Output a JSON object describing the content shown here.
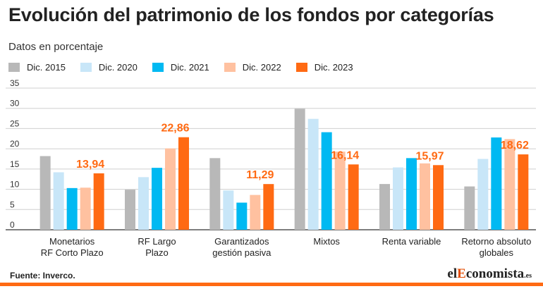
{
  "header": {
    "title": "Evolución del patrimonio de los fondos por categorías",
    "subtitle": "Datos en porcentaje"
  },
  "footer": {
    "source": "Fuente: Inverco.",
    "brand_prefix": "el",
    "brand_highlight": "E",
    "brand_rest": "conomista",
    "brand_suffix": ".es"
  },
  "chart_data": {
    "type": "bar",
    "title": "Evolución del patrimonio de los fondos por categorías",
    "ylabel": "Datos en porcentaje",
    "xlabel": "",
    "ylim": [
      0,
      35
    ],
    "yticks": [
      0,
      5,
      10,
      15,
      20,
      25,
      30,
      35
    ],
    "grid": true,
    "legend_position": "top-left",
    "categories": [
      [
        "Monetarios",
        "RF Corto Plazo"
      ],
      [
        "RF Largo",
        "Plazo"
      ],
      [
        "Garantizados",
        "gestión pasiva"
      ],
      [
        "Mixtos"
      ],
      [
        "Renta variable"
      ],
      [
        "Retorno absoluto",
        "globales"
      ]
    ],
    "series": [
      {
        "name": "Dic. 2015",
        "color": "#b8b8b8",
        "values": [
          18.2,
          9.9,
          17.7,
          29.9,
          11.3,
          10.7
        ]
      },
      {
        "name": "Dic. 2020",
        "color": "#c8e6f8",
        "values": [
          14.2,
          13.0,
          9.7,
          27.4,
          15.4,
          17.5
        ]
      },
      {
        "name": "Dic. 2021",
        "color": "#00b9f2",
        "values": [
          10.3,
          15.3,
          6.7,
          24.1,
          17.7,
          22.8
        ]
      },
      {
        "name": "Dic. 2022",
        "color": "#ffc1a0",
        "values": [
          10.4,
          20.1,
          8.6,
          19.3,
          16.4,
          22.4
        ]
      },
      {
        "name": "Dic. 2023",
        "color": "#ff6a13",
        "values": [
          13.94,
          22.86,
          11.29,
          16.14,
          15.97,
          18.62
        ]
      }
    ],
    "value_labels": [
      "13,94",
      "22,86",
      "11,29",
      "16,14",
      "15,97",
      "18,62"
    ],
    "label_color": "#ff6a13"
  }
}
